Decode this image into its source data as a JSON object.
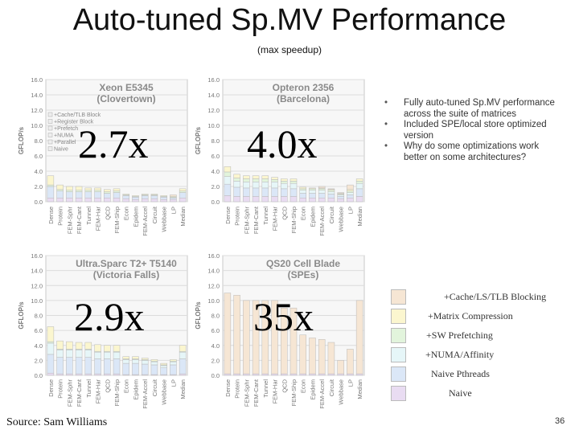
{
  "title": "Auto-tuned Sp.MV Performance",
  "subtitle": "(max speedup)",
  "bullets": [
    "Fully auto-tuned Sp.MV performance across the suite of matrices",
    "Included SPE/local store optimized version",
    "Why do some optimizations work better on some architectures?"
  ],
  "legend": [
    {
      "label": "+Cache/LS/TLB Blocking",
      "color": "#f6e6d4"
    },
    {
      "label": "+Matrix Compression",
      "color": "#fbf6cf"
    },
    {
      "label": "+SW Prefetching",
      "color": "#e2f4dc"
    },
    {
      "label": "+NUMA/Affinity",
      "color": "#e6f6f8"
    },
    {
      "label": "Naive Pthreads",
      "color": "#dbe7f7"
    },
    {
      "label": "Naive",
      "color": "#e9dcf2"
    }
  ],
  "source": "Source: Sam Williams",
  "page_number": "36",
  "chart_data": [
    {
      "type": "bar",
      "stacked": true,
      "title": "Xeon E5345",
      "subtitle": "(Clovertown)",
      "speedup_label": "2.7x",
      "ylabel": "GFLOP/s",
      "ylim": [
        0,
        16
      ],
      "yticks": [
        "0.0",
        "2.0",
        "4.0",
        "6.0",
        "8.0",
        "10.0",
        "12.0",
        "14.0",
        "16.0"
      ],
      "categories": [
        "Dense",
        "Protein",
        "FEM-Sphr",
        "FEM-Cant",
        "Tunnel",
        "FEM-Har",
        "QCD",
        "FEM-Ship",
        "Econ",
        "Epidem",
        "FEM-Accel",
        "Circuit",
        "Webbase",
        "LP",
        "Median"
      ],
      "legend_inset": [
        "+Cache/TLB Block",
        "+Register Block",
        "+Prefetch",
        "+NUMA",
        "+Parallel",
        "Naive"
      ],
      "series": [
        {
          "name": "Naive",
          "values": [
            0.5,
            0.5,
            0.5,
            0.5,
            0.5,
            0.5,
            0.5,
            0.5,
            0.4,
            0.3,
            0.4,
            0.4,
            0.3,
            0.3,
            0.5
          ]
        },
        {
          "name": "Naive Pthreads",
          "values": [
            1.5,
            0.9,
            0.8,
            0.8,
            0.8,
            0.8,
            0.6,
            0.7,
            0.4,
            0.3,
            0.4,
            0.4,
            0.3,
            0.2,
            0.7
          ]
        },
        {
          "name": "+NUMA/Affinity",
          "values": [
            0,
            0,
            0,
            0,
            0,
            0,
            0,
            0,
            0,
            0,
            0,
            0,
            0,
            0,
            0
          ]
        },
        {
          "name": "+SW Prefetching",
          "values": [
            0.2,
            0.2,
            0.2,
            0.2,
            0.2,
            0.2,
            0.2,
            0.2,
            0.1,
            0.1,
            0.1,
            0.1,
            0.1,
            0.1,
            0.2
          ]
        },
        {
          "name": "+Matrix Compression",
          "values": [
            1.2,
            0.6,
            0.5,
            0.5,
            0.3,
            0.3,
            0.3,
            0.3,
            0.1,
            0.1,
            0.1,
            0.1,
            0.1,
            0.1,
            0.3
          ]
        },
        {
          "name": "+Cache/LS/TLB Blocking",
          "values": [
            0,
            0,
            0,
            0,
            0,
            0,
            0,
            0,
            0,
            0,
            0,
            0,
            0,
            0.2,
            0
          ]
        }
      ]
    },
    {
      "type": "bar",
      "stacked": true,
      "title": "Opteron 2356",
      "subtitle": "(Barcelona)",
      "speedup_label": "4.0x",
      "ylabel": "GFLOP/s",
      "ylim": [
        0,
        16
      ],
      "yticks": [
        "0.0",
        "2.0",
        "4.0",
        "6.0",
        "8.0",
        "10.0",
        "12.0",
        "14.0",
        "16.0"
      ],
      "categories": [
        "Dense",
        "Protein",
        "FEM-Sphr",
        "FEM-Cant",
        "Tunnel",
        "FEM-Har",
        "QCD",
        "FEM-Ship",
        "Econ",
        "Epidem",
        "FEM-Accel",
        "Circuit",
        "Webbase",
        "LP",
        "Median"
      ],
      "series": [
        {
          "name": "Naive",
          "values": [
            0.8,
            0.7,
            0.7,
            0.7,
            0.7,
            0.7,
            0.7,
            0.7,
            0.5,
            0.5,
            0.5,
            0.5,
            0.4,
            0.5,
            0.7
          ]
        },
        {
          "name": "Naive Pthreads",
          "values": [
            1.5,
            1.2,
            1.1,
            1.1,
            1.1,
            1.1,
            1.0,
            1.0,
            0.6,
            0.6,
            0.6,
            0.5,
            0.3,
            0.4,
            1.0
          ]
        },
        {
          "name": "+NUMA/Affinity",
          "values": [
            1.0,
            0.8,
            0.8,
            0.8,
            0.8,
            0.8,
            0.7,
            0.7,
            0.4,
            0.4,
            0.4,
            0.3,
            0.2,
            0.3,
            0.7
          ]
        },
        {
          "name": "+SW Prefetching",
          "values": [
            0.6,
            0.4,
            0.4,
            0.4,
            0.4,
            0.3,
            0.3,
            0.3,
            0.2,
            0.2,
            0.2,
            0.2,
            0.1,
            0.2,
            0.3
          ]
        },
        {
          "name": "+Matrix Compression",
          "values": [
            0.7,
            0.5,
            0.4,
            0.4,
            0.4,
            0.3,
            0.3,
            0.3,
            0.2,
            0.1,
            0.1,
            0.1,
            0.1,
            0.2,
            0.3
          ]
        },
        {
          "name": "+Cache/LS/TLB Blocking",
          "values": [
            0,
            0,
            0,
            0,
            0,
            0,
            0,
            0,
            0,
            0,
            0.2,
            0.1,
            0.1,
            0.6,
            0
          ]
        }
      ]
    },
    {
      "type": "bar",
      "stacked": true,
      "title": "Ultra.Sparc T2+ T5140",
      "subtitle": "(Victoria Falls)",
      "speedup_label": "2.9x",
      "ylabel": "GFLOP/s",
      "ylim": [
        0,
        16
      ],
      "yticks": [
        "0.0",
        "2.0",
        "4.0",
        "6.0",
        "8.0",
        "10.0",
        "12.0",
        "14.0",
        "16.0"
      ],
      "categories": [
        "Dense",
        "Protein",
        "FEM-Sphr",
        "FEM-Cant",
        "Tunnel",
        "FEM-Har",
        "QCD",
        "FEM-Ship",
        "Econ",
        "Epidem",
        "FEM-Accel",
        "Circuit",
        "Webbase",
        "LP",
        "Median"
      ],
      "series": [
        {
          "name": "Naive",
          "values": [
            0.3,
            0.2,
            0.2,
            0.2,
            0.2,
            0.2,
            0.2,
            0.2,
            0.1,
            0.1,
            0.1,
            0.1,
            0.1,
            0.1,
            0.2
          ]
        },
        {
          "name": "Naive Pthreads",
          "values": [
            2.5,
            2.2,
            2.2,
            2.2,
            2.2,
            2.0,
            2.0,
            2.0,
            1.5,
            1.5,
            1.4,
            1.3,
            0.9,
            1.3,
            2.0
          ]
        },
        {
          "name": "+NUMA/Affinity",
          "values": [
            1.5,
            1.0,
            1.0,
            1.0,
            1.0,
            0.9,
            0.9,
            0.9,
            0.5,
            0.5,
            0.5,
            0.4,
            0.3,
            0.4,
            0.9
          ]
        },
        {
          "name": "+SW Prefetching",
          "values": [
            0.2,
            0.1,
            0.1,
            0.1,
            0.1,
            0.1,
            0.1,
            0.1,
            0.1,
            0.1,
            0.1,
            0.1,
            0.1,
            0.1,
            0.1
          ]
        },
        {
          "name": "+Matrix Compression",
          "values": [
            2.0,
            1.1,
            1.0,
            0.9,
            0.9,
            0.9,
            0.8,
            0.8,
            0.3,
            0.3,
            0.2,
            0.2,
            0.2,
            0.2,
            0.8
          ]
        },
        {
          "name": "+Cache/LS/TLB Blocking",
          "values": [
            0,
            0,
            0,
            0,
            0,
            0,
            0,
            0,
            0,
            0,
            0,
            0,
            0,
            0,
            0
          ]
        }
      ]
    },
    {
      "type": "bar",
      "stacked": true,
      "title": "QS20 Cell Blade",
      "subtitle": "(SPEs)",
      "speedup_label": "35x",
      "ylabel": "GFLOP/s",
      "ylim": [
        0,
        16
      ],
      "yticks": [
        "0.0",
        "2.0",
        "4.0",
        "6.0",
        "8.0",
        "10.0",
        "12.0",
        "14.0",
        "16.0"
      ],
      "categories": [
        "Dense",
        "Protein",
        "FEM-Sphr",
        "FEM-Cant",
        "Tunnel",
        "FEM-Har",
        "QCD",
        "FEM-Ship",
        "Econ",
        "Epidem",
        "FEM-Accel",
        "Circuit",
        "Webbase",
        "LP",
        "Median"
      ],
      "series": [
        {
          "name": "Naive",
          "values": [
            0.2,
            0.2,
            0.2,
            0.2,
            0.2,
            0.2,
            0.2,
            0.2,
            0.2,
            0.2,
            0.2,
            0.2,
            0.2,
            0.2,
            0.2
          ]
        },
        {
          "name": "Naive Pthreads",
          "values": [
            0,
            0,
            0,
            0,
            0,
            0,
            0,
            0,
            0,
            0,
            0,
            0,
            0,
            0,
            0
          ]
        },
        {
          "name": "+NUMA/Affinity",
          "values": [
            0,
            0,
            0,
            0,
            0,
            0,
            0,
            0,
            0,
            0,
            0,
            0,
            0,
            0,
            0
          ]
        },
        {
          "name": "+SW Prefetching",
          "values": [
            0,
            0,
            0,
            0,
            0,
            0,
            0,
            0,
            0,
            0,
            0,
            0,
            0,
            0,
            0
          ]
        },
        {
          "name": "+Matrix Compression",
          "values": [
            0,
            0,
            0,
            0,
            0,
            0,
            0,
            0,
            0,
            0,
            0,
            0,
            0,
            0,
            0
          ]
        },
        {
          "name": "+Cache/LS/TLB Blocking",
          "values": [
            10.8,
            10.5,
            9.8,
            9.8,
            9.8,
            9.8,
            8.8,
            8.8,
            5.2,
            4.8,
            4.6,
            4.2,
            1.8,
            3.3,
            9.8
          ]
        }
      ]
    }
  ]
}
